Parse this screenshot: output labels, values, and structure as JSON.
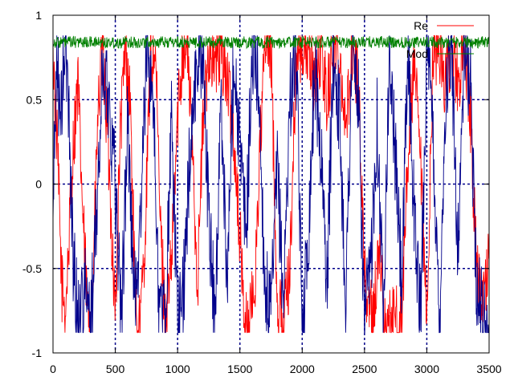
{
  "chart_data": {
    "type": "line",
    "title": "",
    "xlabel": "",
    "ylabel": "",
    "xlim": [
      0,
      3500
    ],
    "ylim": [
      -1,
      1
    ],
    "x_ticks": [
      0,
      500,
      1000,
      1500,
      2000,
      2500,
      3000,
      3500
    ],
    "x_tick_labels": [
      "0",
      "500",
      "1000",
      "1500",
      "2000",
      "2500",
      "3000",
      "3500"
    ],
    "y_ticks": [
      -1,
      -0.5,
      0,
      0.5,
      1
    ],
    "y_tick_labels": [
      "-1",
      "-0.5",
      "0",
      "0.5",
      "1"
    ],
    "grid": true,
    "legend_position": "top-right",
    "series": [
      {
        "name": "Re",
        "color": "#ff0000",
        "x": [
          0,
          40,
          70,
          100,
          130,
          160,
          200,
          240,
          280,
          320,
          360,
          400,
          450,
          500,
          540,
          580,
          620,
          660,
          700,
          740,
          780,
          820,
          860,
          900,
          950,
          1000,
          1040,
          1080,
          1120,
          1160,
          1200,
          1250,
          1300,
          1350,
          1400,
          1450,
          1500,
          1540,
          1580,
          1620,
          1660,
          1700,
          1750,
          1800,
          1850,
          1900,
          1950,
          2000,
          2050,
          2100,
          2150,
          2200,
          2250,
          2300,
          2350,
          2400,
          2450,
          2500,
          2540,
          2580,
          2620,
          2660,
          2700,
          2750,
          2800,
          2850,
          2900,
          2950,
          3000,
          3050,
          3100,
          3150,
          3200,
          3250,
          3300,
          3350,
          3400,
          3450,
          3500
        ],
        "values": [
          0.8,
          0.1,
          -0.6,
          -0.75,
          -0.3,
          0.2,
          0.6,
          -0.2,
          -0.8,
          -0.6,
          0.4,
          0.8,
          0.1,
          -0.8,
          0.3,
          0.8,
          0.5,
          -0.7,
          -0.85,
          -0.3,
          0.7,
          0.8,
          -0.2,
          -0.8,
          -0.5,
          0.4,
          0.8,
          0.8,
          0.2,
          -0.6,
          0.3,
          0.8,
          0.7,
          0.8,
          0.6,
          0.3,
          -0.3,
          -0.85,
          -0.8,
          -0.6,
          0.2,
          0.8,
          0.8,
          -0.7,
          -0.8,
          -0.5,
          0.7,
          0.8,
          0.8,
          0.6,
          0.8,
          0.5,
          0.8,
          0.8,
          0.3,
          0.8,
          0.6,
          -0.5,
          -0.8,
          -0.7,
          -0.4,
          -0.8,
          -0.85,
          -0.8,
          -0.8,
          0.2,
          0.7,
          0.1,
          -0.85,
          0.8,
          0.8,
          0.6,
          0.8,
          0.6,
          0.8,
          0.4,
          -0.5,
          -0.75,
          -0.45
        ],
        "noise": 0.22
      },
      {
        "name": "Mod",
        "color": "#008000",
        "x": [
          0,
          500,
          1000,
          1500,
          2000,
          2500,
          3000,
          3500
        ],
        "values": [
          0.84,
          0.84,
          0.84,
          0.84,
          0.84,
          0.84,
          0.84,
          0.84
        ],
        "noise": 0.035
      },
      {
        "name": "",
        "color": "#00008b",
        "x": [
          0,
          30,
          60,
          90,
          120,
          160,
          200,
          250,
          300,
          350,
          400,
          450,
          500,
          550,
          600,
          650,
          700,
          750,
          800,
          850,
          900,
          950,
          1000,
          1050,
          1100,
          1150,
          1200,
          1250,
          1300,
          1350,
          1400,
          1450,
          1500,
          1550,
          1600,
          1650,
          1700,
          1750,
          1800,
          1850,
          1900,
          1950,
          2000,
          2050,
          2100,
          2150,
          2200,
          2250,
          2300,
          2350,
          2400,
          2450,
          2500,
          2550,
          2600,
          2650,
          2700,
          2750,
          2800,
          2850,
          2900,
          2950,
          3000,
          3050,
          3100,
          3150,
          3200,
          3250,
          3300,
          3350,
          3400,
          3450,
          3500
        ],
        "values": [
          -0.2,
          0.8,
          0.3,
          0.8,
          0.6,
          -0.4,
          -0.8,
          -0.6,
          -0.85,
          -0.2,
          0.7,
          0.5,
          0.0,
          -0.8,
          0.4,
          -0.7,
          -0.3,
          0.8,
          0.6,
          -0.7,
          -0.85,
          0.4,
          -0.8,
          -0.6,
          0.2,
          0.7,
          0.8,
          -0.2,
          -0.8,
          0.5,
          -0.6,
          0.8,
          0.2,
          -0.3,
          0.8,
          0.6,
          -0.6,
          -0.8,
          0.1,
          -0.7,
          0.5,
          0.8,
          -0.85,
          -0.3,
          0.7,
          0.2,
          -0.6,
          0.8,
          0.4,
          -0.7,
          0.8,
          0.5,
          -0.85,
          -0.5,
          0.4,
          -0.7,
          0.8,
          0.1,
          -0.6,
          0.8,
          -0.2,
          -0.8,
          0.8,
          0.3,
          -0.85,
          0.5,
          0.8,
          -0.4,
          0.8,
          0.6,
          -0.6,
          -0.8,
          -0.85
        ],
        "noise": 0.28
      }
    ]
  }
}
